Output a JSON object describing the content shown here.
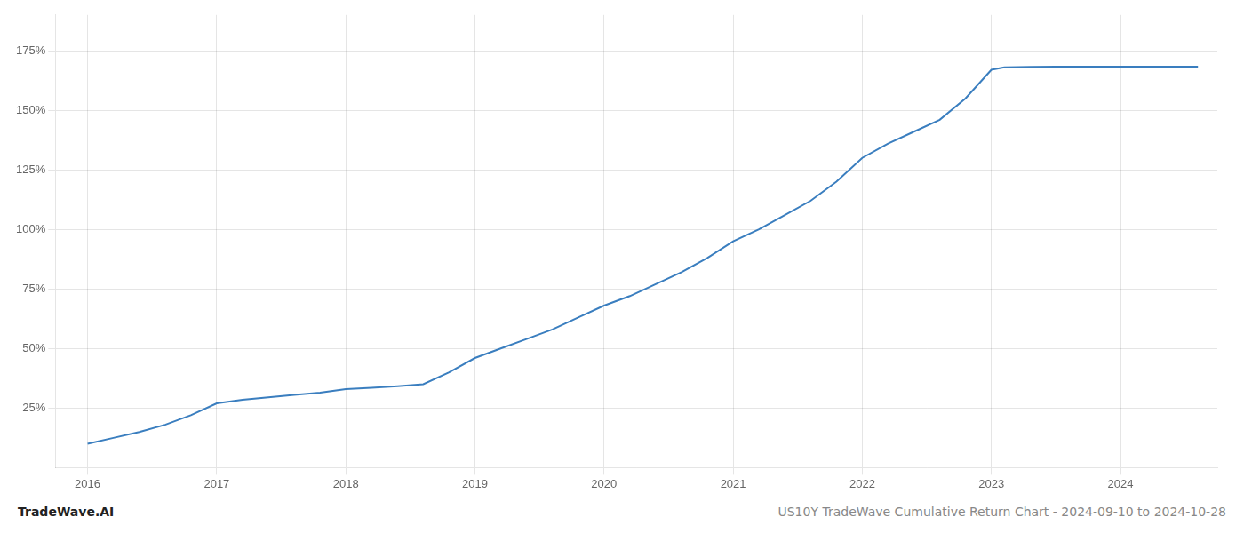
{
  "chart_data": {
    "type": "line",
    "x": [
      2016.0,
      2016.2,
      2016.4,
      2016.6,
      2016.8,
      2017.0,
      2017.2,
      2017.4,
      2017.6,
      2017.8,
      2018.0,
      2018.2,
      2018.4,
      2018.6,
      2018.8,
      2019.0,
      2019.2,
      2019.4,
      2019.6,
      2019.8,
      2020.0,
      2020.2,
      2020.4,
      2020.6,
      2020.8,
      2021.0,
      2021.2,
      2021.4,
      2021.6,
      2021.8,
      2022.0,
      2022.2,
      2022.4,
      2022.6,
      2022.8,
      2023.0,
      2023.1,
      2023.3,
      2023.5,
      2023.7,
      2023.9,
      2024.0,
      2024.3,
      2024.6
    ],
    "values": [
      10.0,
      12.5,
      15.0,
      18.0,
      22.0,
      27.0,
      28.5,
      29.5,
      30.5,
      31.5,
      33.0,
      33.5,
      34.2,
      35.0,
      40.0,
      46.0,
      50.0,
      54.0,
      58.0,
      63.0,
      68.0,
      72.0,
      77.0,
      82.0,
      88.0,
      95.0,
      100.0,
      106.0,
      112.0,
      120.0,
      130.0,
      136.0,
      141.0,
      146.0,
      155.0,
      167.0,
      168.0,
      168.2,
      168.3,
      168.3,
      168.3,
      168.3,
      168.3,
      168.3
    ],
    "color": "#3a7ebf",
    "xlim": [
      2015.75,
      2024.75
    ],
    "ylim": [
      0,
      190
    ],
    "xticks": [
      2016,
      2017,
      2018,
      2019,
      2020,
      2021,
      2022,
      2023,
      2024
    ],
    "yticks": [
      {
        "value": 25,
        "label": "25%"
      },
      {
        "value": 50,
        "label": "50%"
      },
      {
        "value": 75,
        "label": "75%"
      },
      {
        "value": 100,
        "label": "100%"
      },
      {
        "value": 125,
        "label": "125%"
      },
      {
        "value": 150,
        "label": "150%"
      },
      {
        "value": 175,
        "label": "175%"
      }
    ],
    "grid": true,
    "annotations": [
      "TradeWave.AI",
      "US10Y TradeWave Cumulative Return Chart - 2024-09-10 to 2024-10-28"
    ]
  }
}
